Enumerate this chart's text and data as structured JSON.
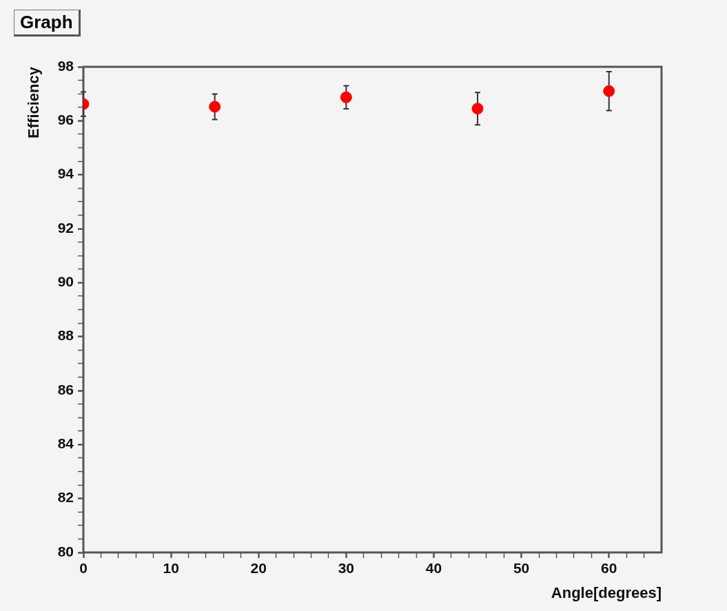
{
  "chart_data": {
    "type": "scatter",
    "title": "Graph",
    "xlabel": "Angle[degrees]",
    "ylabel": "Efficiency",
    "x": [
      0,
      15,
      30,
      45,
      60
    ],
    "values": [
      96.62,
      96.52,
      96.87,
      96.45,
      97.1
    ],
    "errors": [
      0.45,
      0.47,
      0.43,
      0.6,
      0.72
    ],
    "color": "#ff0000",
    "marker": "circle",
    "grid": false,
    "legend": false,
    "xlim": [
      0,
      66
    ],
    "xticks": [
      0,
      {
        "value": 2,
        "label": null
      },
      {
        "value": 4,
        "label": null
      },
      {
        "value": 6,
        "label": null
      },
      {
        "value": 8,
        "label": null
      },
      10,
      {
        "value": 12,
        "label": null
      },
      {
        "value": 14,
        "label": null
      },
      {
        "value": 16,
        "label": null
      },
      {
        "value": 18,
        "label": null
      },
      20,
      {
        "value": 22,
        "label": null
      },
      {
        "value": 24,
        "label": null
      },
      {
        "value": 26,
        "label": null
      },
      {
        "value": 28,
        "label": null
      },
      30,
      {
        "value": 32,
        "label": null
      },
      {
        "value": 34,
        "label": null
      },
      {
        "value": 36,
        "label": null
      },
      {
        "value": 38,
        "label": null
      },
      40,
      {
        "value": 42,
        "label": null
      },
      {
        "value": 44,
        "label": null
      },
      {
        "value": 46,
        "label": null
      },
      {
        "value": 48,
        "label": null
      },
      50,
      {
        "value": 52,
        "label": null
      },
      {
        "value": 54,
        "label": null
      },
      {
        "value": 56,
        "label": null
      },
      {
        "value": 58,
        "label": null
      },
      60,
      {
        "value": 62,
        "label": null
      },
      {
        "value": 64,
        "label": null
      }
    ],
    "ylim": [
      80,
      98
    ],
    "yticks": [
      80,
      {
        "value": 80.5,
        "label": null
      },
      {
        "value": 81,
        "label": null
      },
      {
        "value": 81.5,
        "label": null
      },
      82,
      {
        "value": 82.5,
        "label": null
      },
      {
        "value": 83,
        "label": null
      },
      {
        "value": 83.5,
        "label": null
      },
      84,
      {
        "value": 84.5,
        "label": null
      },
      {
        "value": 85,
        "label": null
      },
      {
        "value": 85.5,
        "label": null
      },
      86,
      {
        "value": 86.5,
        "label": null
      },
      {
        "value": 87,
        "label": null
      },
      {
        "value": 87.5,
        "label": null
      },
      88,
      {
        "value": 88.5,
        "label": null
      },
      {
        "value": 89,
        "label": null
      },
      {
        "value": 89.5,
        "label": null
      },
      90,
      {
        "value": 90.5,
        "label": null
      },
      {
        "value": 91,
        "label": null
      },
      {
        "value": 91.5,
        "label": null
      },
      92,
      {
        "value": 92.5,
        "label": null
      },
      {
        "value": 93,
        "label": null
      },
      {
        "value": 93.5,
        "label": null
      },
      94,
      {
        "value": 94.5,
        "label": null
      },
      {
        "value": 95,
        "label": null
      },
      {
        "value": 95.5,
        "label": null
      },
      96,
      {
        "value": 96.5,
        "label": null
      },
      {
        "value": 97,
        "label": null
      },
      {
        "value": 97.5,
        "label": null
      },
      98
    ]
  }
}
